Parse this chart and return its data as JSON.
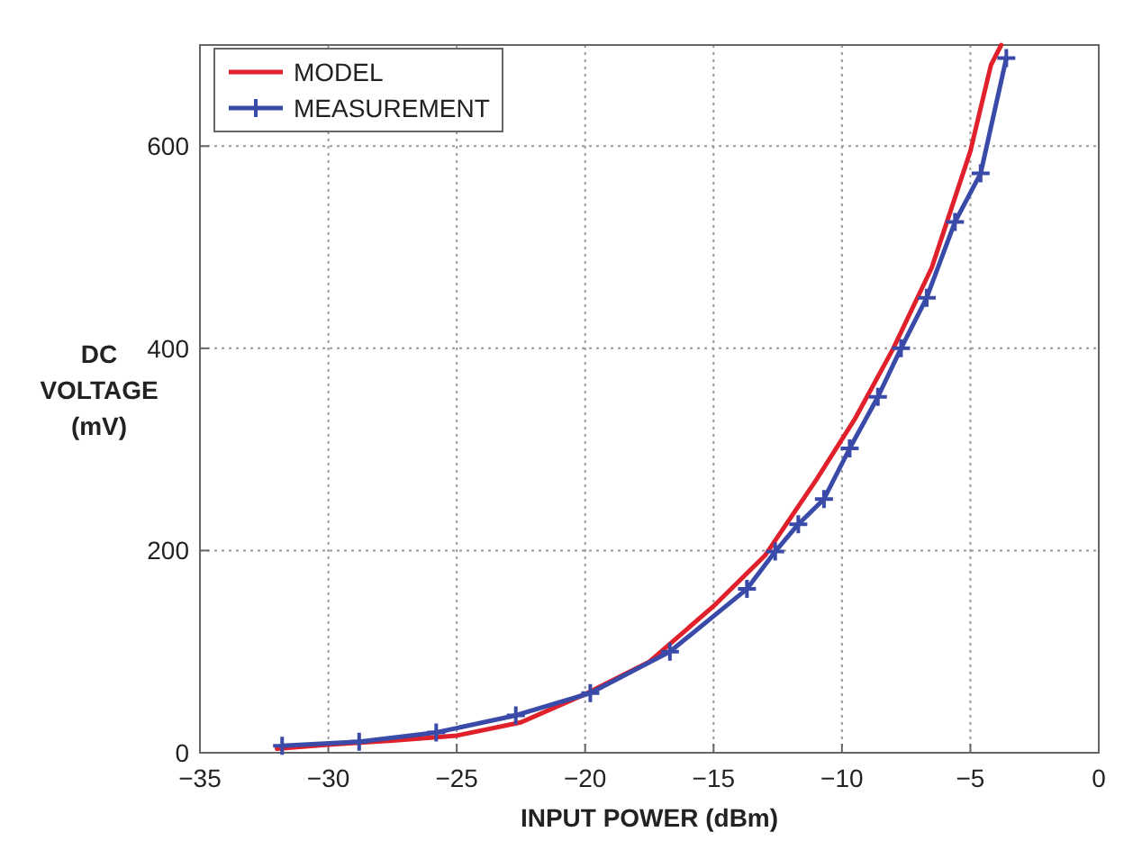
{
  "chart_data": {
    "type": "line",
    "xlabel": "INPUT POWER (dBm)",
    "ylabel": "DC\nVOLTAGE\n(mV)",
    "xlim": [
      -35,
      0
    ],
    "xticks": [
      {
        "value": -35,
        "label": "−35"
      },
      {
        "value": -30,
        "label": "−30"
      },
      {
        "value": -25,
        "label": "−25"
      },
      {
        "value": -20,
        "label": "−20"
      },
      {
        "value": -15,
        "label": "−15"
      },
      {
        "value": -10,
        "label": "−10"
      },
      {
        "value": -5,
        "label": "−5"
      },
      0
    ],
    "ylim": [
      0,
      700
    ],
    "yticks": [
      0,
      200,
      400,
      600
    ],
    "grid": true,
    "legend": "top left",
    "line_style": "solid",
    "series": [
      {
        "name": "MODEL",
        "color": "#e0202a",
        "marker": "none",
        "x": [
          -32,
          -30,
          -27.5,
          -25,
          -22.5,
          -20,
          -17.5,
          -15,
          -13,
          -11,
          -9.5,
          -8,
          -6.5,
          -5,
          -4.2,
          -3.8
        ],
        "values": [
          4,
          8,
          12,
          17,
          30,
          58,
          90,
          145,
          195,
          270,
          330,
          400,
          480,
          595,
          680,
          700
        ]
      },
      {
        "name": "MEASUREMENT",
        "color": "#3a4aa8",
        "marker": "cross",
        "x": [
          -31.8,
          -28.8,
          -25.8,
          -22.7,
          -19.8,
          -16.7,
          -13.7,
          -12.6,
          -11.7,
          -10.7,
          -9.7,
          -8.6,
          -7.7,
          -6.7,
          -5.6,
          -4.6,
          -3.6
        ],
        "values": [
          7,
          11,
          20,
          37,
          59,
          100,
          162,
          199,
          226,
          251,
          301,
          352,
          400,
          450,
          525,
          573,
          687
        ]
      }
    ]
  }
}
